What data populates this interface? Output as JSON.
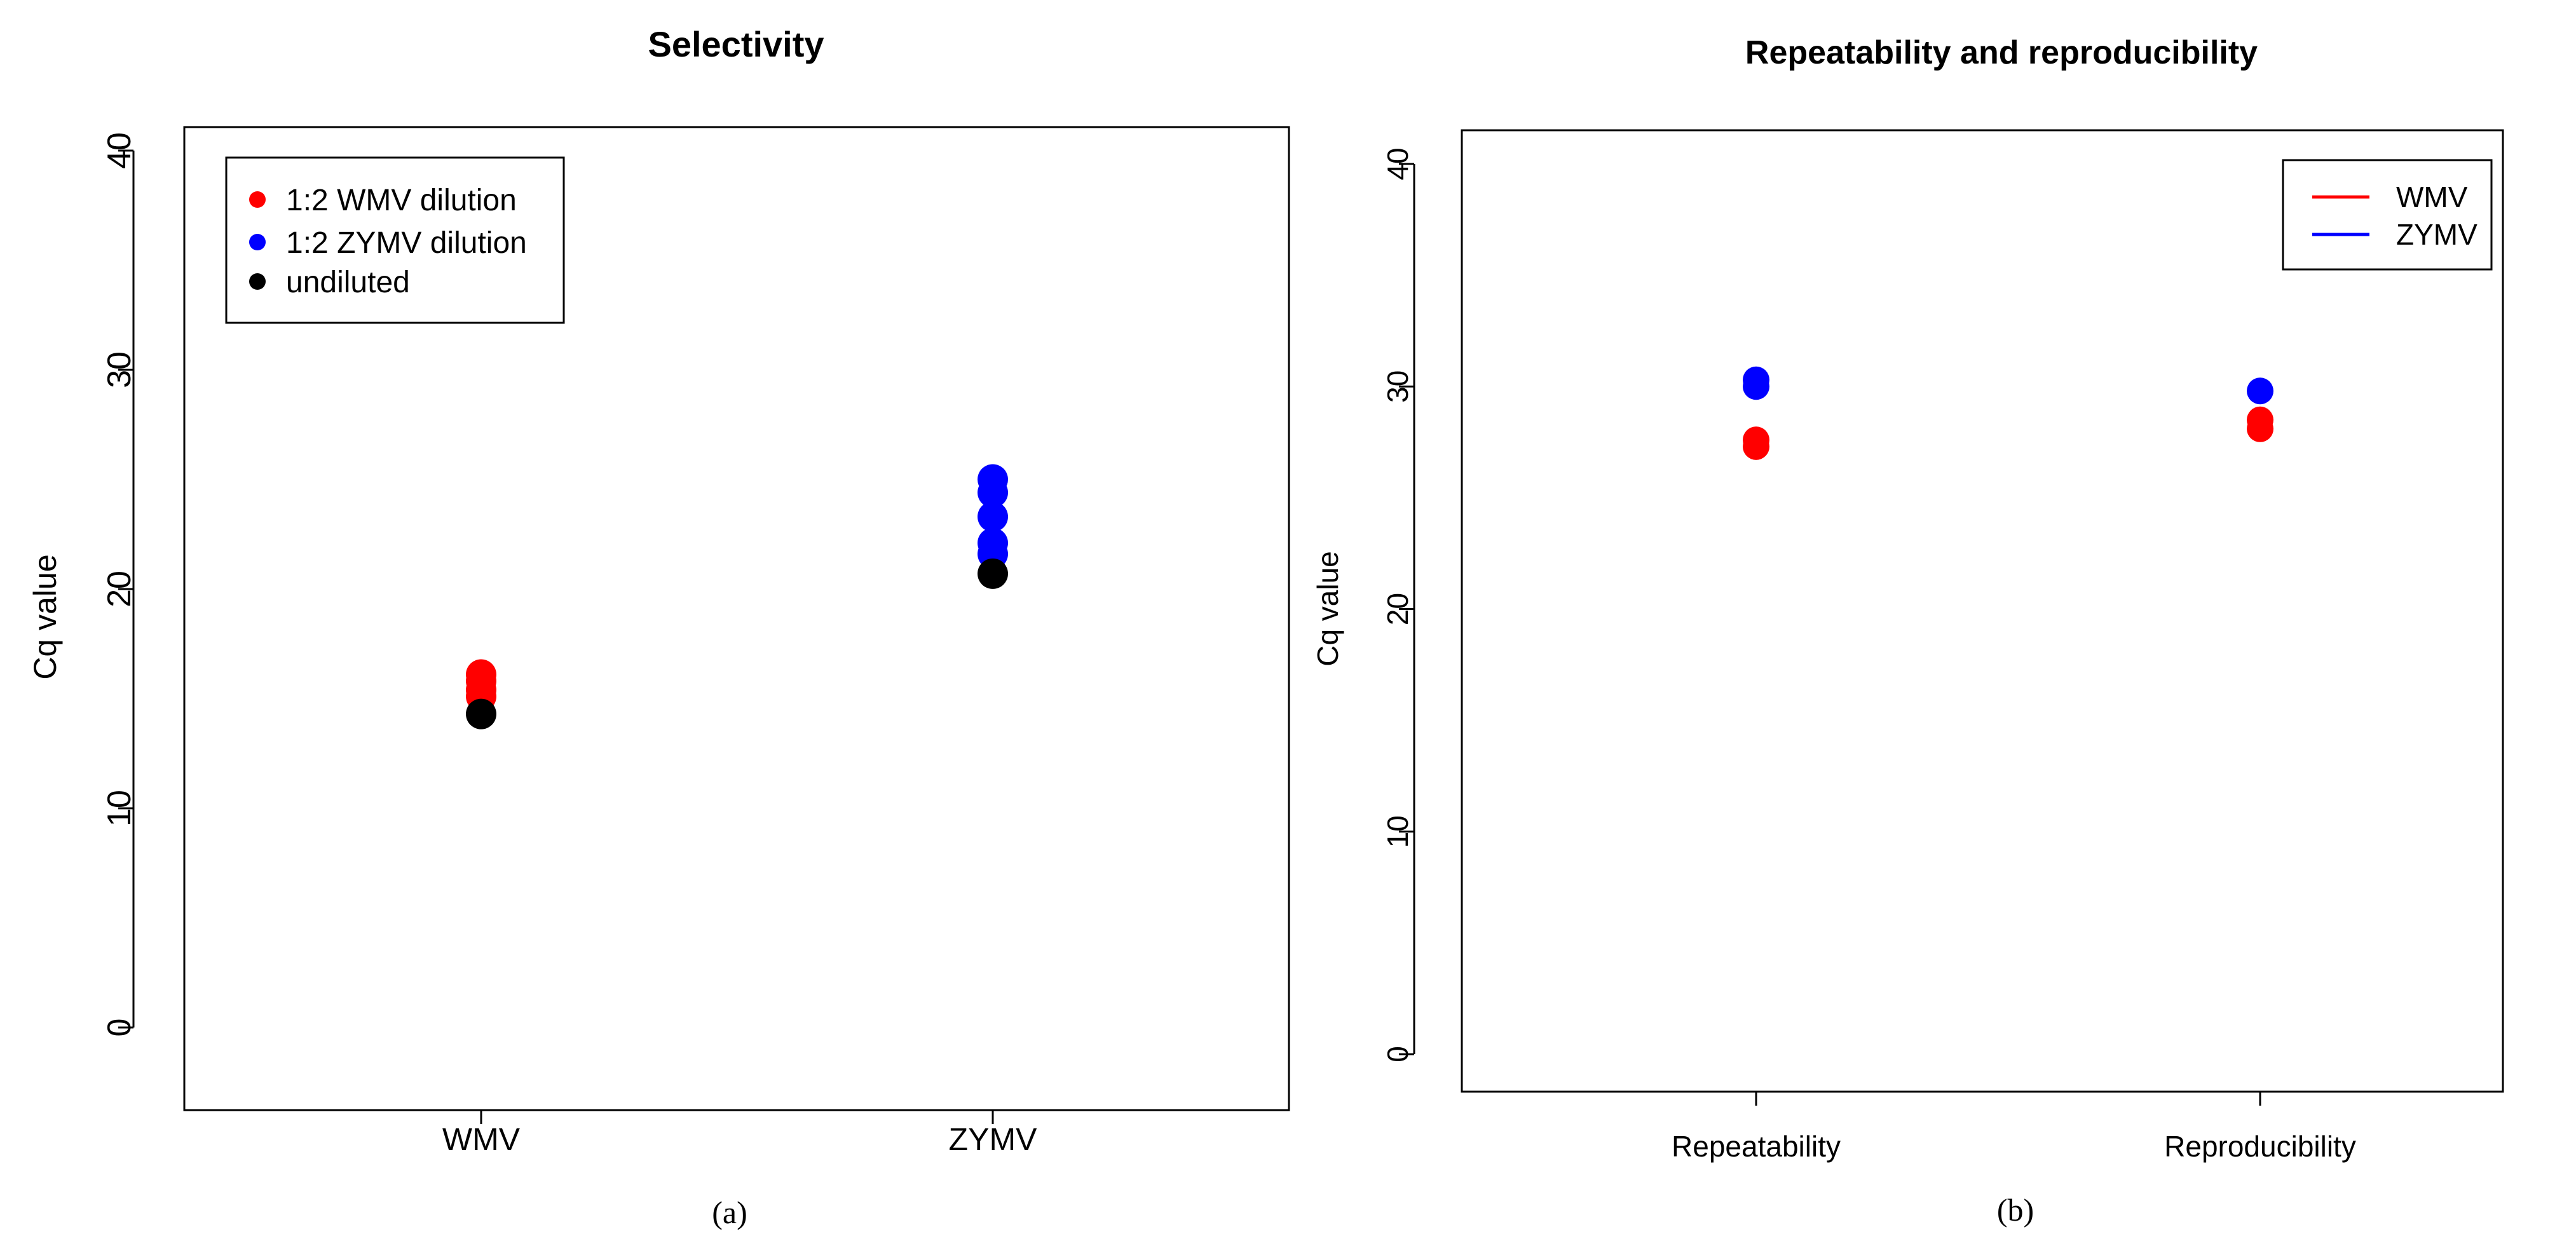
{
  "chart_data": [
    {
      "type": "scatter",
      "title": "Selectivity",
      "xlabel": "",
      "ylabel": "Cq value",
      "ylim": [
        0,
        40
      ],
      "yticks": [
        "0",
        "10",
        "20",
        "30",
        "40"
      ],
      "categories": [
        "WMV",
        "ZYMV"
      ],
      "legend": {
        "position": "top-left",
        "entries": [
          {
            "label": "1:2 WMV dilution",
            "color": "#ff0000",
            "marker": "point"
          },
          {
            "label": "1:2 ZYMV dilution",
            "color": "#0000ff",
            "marker": "point"
          },
          {
            "label": "undiluted",
            "color": "#000000",
            "marker": "point"
          }
        ]
      },
      "series": [
        {
          "name": "1:2 WMV dilution",
          "color": "#ff0000",
          "points": [
            {
              "category": "WMV",
              "values": [
                16.1,
                15.8,
                15.4,
                15.1
              ]
            }
          ]
        },
        {
          "name": "1:2 ZYMV dilution",
          "color": "#0000ff",
          "points": [
            {
              "category": "ZYMV",
              "values": [
                25.0,
                24.4,
                23.3,
                22.1,
                21.6
              ]
            }
          ]
        },
        {
          "name": "undiluted",
          "color": "#000000",
          "points": [
            {
              "category": "WMV",
              "values": [
                14.3
              ]
            },
            {
              "category": "ZYMV",
              "values": [
                20.7
              ]
            }
          ]
        }
      ],
      "caption": "(a)"
    },
    {
      "type": "scatter",
      "title": "Repeatability and reproducibility",
      "xlabel": "",
      "ylabel": "Cq value",
      "ylim": [
        0,
        40
      ],
      "yticks": [
        "0",
        "10",
        "20",
        "30",
        "40"
      ],
      "categories": [
        "Repeatability",
        "Reproducibility"
      ],
      "legend": {
        "position": "top-right",
        "entries": [
          {
            "label": "WMV",
            "color": "#ff0000",
            "marker": "line"
          },
          {
            "label": "ZYMV",
            "color": "#0000ff",
            "marker": "line"
          }
        ]
      },
      "series": [
        {
          "name": "WMV",
          "color": "#ff0000",
          "points": [
            {
              "category": "Repeatability",
              "values": [
                27.6,
                27.3
              ]
            },
            {
              "category": "Reproducibility",
              "values": [
                28.5,
                28.1
              ]
            }
          ]
        },
        {
          "name": "ZYMV",
          "color": "#0000ff",
          "points": [
            {
              "category": "Repeatability",
              "values": [
                30.3,
                30.0
              ]
            },
            {
              "category": "Reproducibility",
              "values": [
                29.8
              ]
            }
          ]
        }
      ],
      "caption": "(b)"
    }
  ]
}
